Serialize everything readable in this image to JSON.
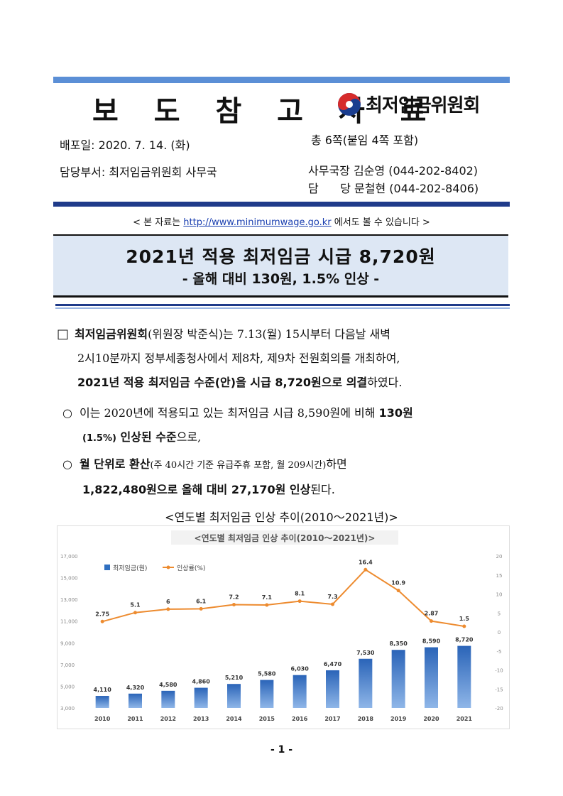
{
  "header": {
    "title": "보 도 참 고 자 료",
    "org_logo_text": "최저임금위원회",
    "release_date": "배포일: 2020. 7. 14. (화)",
    "pages": "총 6쪽(붙임 4쪽 포함)",
    "department": "담당부서: 최저임금위원회 사무국",
    "contact1": "사무국장 김순영 (044-202-8402)",
    "contact2": "담      당 문철현 (044-202-8406)"
  },
  "notice": {
    "prefix": "< 본 자료는 ",
    "url": "http://www.minimumwage.go.kr",
    "suffix": " 에서도 볼 수 있습니다 >"
  },
  "headline": {
    "main": "2021년 적용 최저임금 시급 8,720원",
    "sub": "- 올해 대비 130원, 1.5% 인상 -"
  },
  "body": {
    "p1_bullet": "□",
    "p1_bold1": "최저임금위원회",
    "p1_text1": "(위원장 박준식)는 7.13(월) 15시부터 다음날 새벽",
    "p1_line2": "2시10분까지 정부세종청사에서 제8차, 제9차 전원회의를 개최하여,",
    "p1_bold2": "2021년 적용 최저임금 수준(안)을 시급 8,720원으로 의결",
    "p1_text3": "하였다.",
    "p2_bullet": "○",
    "p2_text1": "이는 2020년에 적용되고 있는 최저임금 시급 8,590원에 비해 ",
    "p2_bold1": "130원",
    "p2_bold2a": "(1.5%)",
    "p2_bold2b": " 인상된 수준",
    "p2_text2": "으로,",
    "p3_bullet": "○",
    "p3_bold1": "월 단위로 환산",
    "p3_text1": "(주 40시간 기준 유급주휴 포함, 월 209시간)",
    "p3_text1b": "하면",
    "p3_bold2": "1,822,480원으로 올해 대비 27,170원 인상",
    "p3_text2": "된다."
  },
  "chart_caption": "<연도별 최저임금 인상 추이(2010～2021년)>",
  "page_number": "- 1 -",
  "colors": {
    "accent_blue": "#5b8fd6",
    "dark_blue": "#1f3b8a",
    "bar": "#2f6fc0",
    "line": "#ed8b2f"
  },
  "chart_data": {
    "type": "bar",
    "title": "<연도별 최저임금 인상 추이(2010～2021년)>",
    "categories": [
      "2010",
      "2011",
      "2012",
      "2013",
      "2014",
      "2015",
      "2016",
      "2017",
      "2018",
      "2019",
      "2020",
      "2021"
    ],
    "series": [
      {
        "name": "최저임금(원)",
        "type": "bar",
        "axis": "left",
        "values": [
          4110,
          4320,
          4580,
          4860,
          5210,
          5580,
          6030,
          6470,
          7530,
          8350,
          8590,
          8720
        ]
      },
      {
        "name": "인상률(%)",
        "type": "line",
        "axis": "right",
        "values": [
          2.75,
          5.1,
          6,
          6.1,
          7.2,
          7.1,
          8.1,
          7.3,
          16.4,
          10.9,
          2.87,
          1.5
        ]
      }
    ],
    "bar_labels": [
      "4,110",
      "4,320",
      "4,580",
      "4,860",
      "5,210",
      "5,580",
      "6,030",
      "6,470",
      "7,530",
      "8,350",
      "8,590",
      "8,720"
    ],
    "line_labels": [
      "2.75",
      "5.1",
      "6",
      "6.1",
      "7.2",
      "7.1",
      "8.1",
      "7.3",
      "16.4",
      "10.9",
      "2.87",
      "1.5"
    ],
    "ylim_left": [
      3000,
      17000
    ],
    "yticks_left": [
      "3,000",
      "5,000",
      "7,000",
      "9,000",
      "11,000",
      "13,000",
      "15,000",
      "17,000"
    ],
    "ylim_right": [
      -20,
      20
    ],
    "yticks_right": [
      "-20",
      "-15",
      "-10",
      "-5",
      "0",
      "5",
      "10",
      "15",
      "20"
    ],
    "legend_position": "top-left",
    "grid": false
  }
}
